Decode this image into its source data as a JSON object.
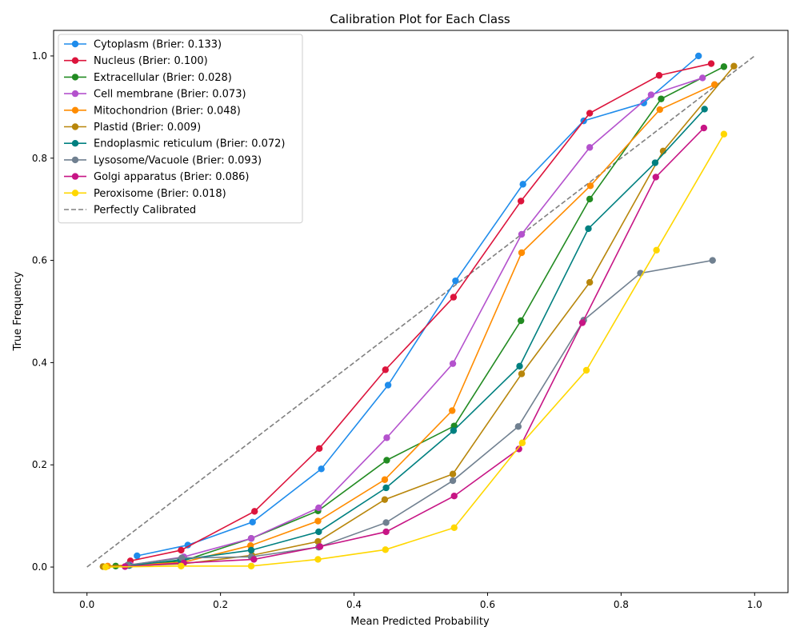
{
  "chart_data": {
    "type": "line",
    "title": "Calibration Plot for Each Class",
    "xlabel": "Mean Predicted Probability",
    "ylabel": "True Frequency",
    "xlim": [
      -0.05,
      1.05
    ],
    "ylim": [
      -0.05,
      1.05
    ],
    "xticks": [
      "0.0",
      "0.2",
      "0.4",
      "0.6",
      "0.8",
      "1.0"
    ],
    "yticks": [
      "0.0",
      "0.2",
      "0.4",
      "0.6",
      "0.8",
      "1.0"
    ],
    "grid": false,
    "legend_position": "top-left",
    "series": [
      {
        "name": "Cytoplasm (Brier: 0.133)",
        "color": "#1f8ceb",
        "x": [
          0.075,
          0.151,
          0.248,
          0.351,
          0.451,
          0.552,
          0.653,
          0.744,
          0.834,
          0.916
        ],
        "y": [
          0.022,
          0.043,
          0.088,
          0.192,
          0.356,
          0.56,
          0.749,
          0.873,
          0.908,
          1.0
        ]
      },
      {
        "name": "Nucleus (Brier: 0.100)",
        "color": "#dc143c",
        "x": [
          0.065,
          0.141,
          0.251,
          0.348,
          0.447,
          0.549,
          0.65,
          0.753,
          0.857,
          0.935
        ],
        "y": [
          0.012,
          0.033,
          0.109,
          0.232,
          0.386,
          0.528,
          0.716,
          0.888,
          0.962,
          0.985
        ]
      },
      {
        "name": "Extracellular (Brier: 0.028)",
        "color": "#228b22",
        "x": [
          0.043,
          0.144,
          0.246,
          0.346,
          0.449,
          0.55,
          0.65,
          0.753,
          0.86,
          0.954
        ],
        "y": [
          0.002,
          0.012,
          0.056,
          0.11,
          0.209,
          0.276,
          0.482,
          0.72,
          0.916,
          0.979
        ]
      },
      {
        "name": "Cell membrane (Brier: 0.073)",
        "color": "#b452cd",
        "x": [
          0.065,
          0.145,
          0.246,
          0.347,
          0.449,
          0.548,
          0.651,
          0.753,
          0.845,
          0.922
        ],
        "y": [
          0.004,
          0.02,
          0.056,
          0.116,
          0.253,
          0.398,
          0.651,
          0.821,
          0.924,
          0.957
        ]
      },
      {
        "name": "Mitochondrion (Brier: 0.048)",
        "color": "#ff8c00",
        "x": [
          0.031,
          0.143,
          0.245,
          0.346,
          0.446,
          0.547,
          0.651,
          0.754,
          0.858,
          0.94
        ],
        "y": [
          0.002,
          0.009,
          0.042,
          0.09,
          0.171,
          0.306,
          0.615,
          0.746,
          0.895,
          0.944
        ]
      },
      {
        "name": "Plastid (Brier: 0.009)",
        "color": "#b8860b",
        "x": [
          0.024,
          0.142,
          0.247,
          0.346,
          0.446,
          0.548,
          0.651,
          0.753,
          0.863,
          0.969
        ],
        "y": [
          0.001,
          0.006,
          0.023,
          0.05,
          0.132,
          0.182,
          0.378,
          0.557,
          0.814,
          0.98
        ]
      },
      {
        "name": "Endoplasmic reticulum (Brier: 0.072)",
        "color": "#008080",
        "x": [
          0.063,
          0.14,
          0.246,
          0.347,
          0.448,
          0.549,
          0.648,
          0.751,
          0.851,
          0.925
        ],
        "y": [
          0.003,
          0.014,
          0.033,
          0.069,
          0.155,
          0.267,
          0.393,
          0.662,
          0.791,
          0.896
        ]
      },
      {
        "name": "Lysosome/Vacuole (Brier: 0.093)",
        "color": "#708090",
        "x": [
          0.061,
          0.142,
          0.246,
          0.347,
          0.448,
          0.548,
          0.646,
          0.744,
          0.829,
          0.937
        ],
        "y": [
          0.004,
          0.018,
          0.02,
          0.039,
          0.087,
          0.169,
          0.275,
          0.483,
          0.575,
          0.6
        ]
      },
      {
        "name": "Golgi apparatus (Brier: 0.086)",
        "color": "#c71585",
        "x": [
          0.057,
          0.145,
          0.25,
          0.349,
          0.448,
          0.55,
          0.647,
          0.742,
          0.852,
          0.924
        ],
        "y": [
          0.001,
          0.008,
          0.015,
          0.04,
          0.069,
          0.139,
          0.231,
          0.478,
          0.763,
          0.859
        ]
      },
      {
        "name": "Peroxisome (Brier: 0.018)",
        "color": "#ffd700",
        "x": [
          0.028,
          0.141,
          0.246,
          0.346,
          0.447,
          0.55,
          0.652,
          0.748,
          0.853,
          0.954
        ],
        "y": [
          0.0,
          0.002,
          0.002,
          0.015,
          0.034,
          0.077,
          0.243,
          0.385,
          0.62,
          0.847
        ]
      }
    ],
    "reference_line": {
      "name": "Perfectly Calibrated",
      "color": "#808080",
      "style": "dashed",
      "x": [
        0,
        1
      ],
      "y": [
        0,
        1
      ]
    }
  }
}
